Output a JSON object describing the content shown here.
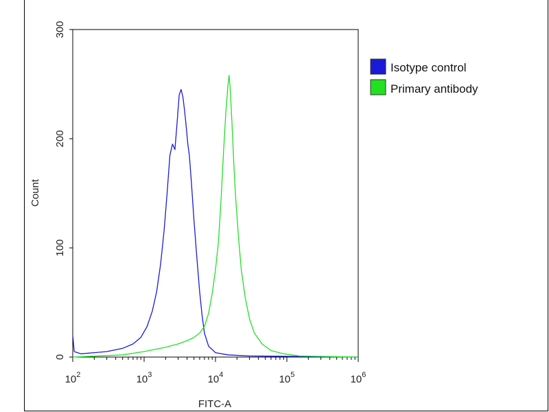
{
  "chart_data": {
    "type": "line",
    "title": "",
    "xlabel": "FITC-A",
    "ylabel": "Count",
    "x_scale": "log",
    "xlim": [
      100,
      1000000
    ],
    "ylim": [
      0,
      300
    ],
    "x_ticks": [
      {
        "value": 100,
        "base": "10",
        "exp": "2"
      },
      {
        "value": 1000,
        "base": "10",
        "exp": "3"
      },
      {
        "value": 10000,
        "base": "10",
        "exp": "4"
      },
      {
        "value": 100000,
        "base": "10",
        "exp": "5"
      },
      {
        "value": 1000000,
        "base": "10",
        "exp": "6"
      }
    ],
    "y_ticks": [
      0,
      100,
      200,
      300
    ],
    "grid": false,
    "legend_position": "top-right",
    "series": [
      {
        "name": "Isotype control",
        "color": "#1a1ad6",
        "points": [
          [
            100,
            20
          ],
          [
            105,
            5
          ],
          [
            130,
            3
          ],
          [
            200,
            4
          ],
          [
            300,
            5
          ],
          [
            500,
            8
          ],
          [
            700,
            12
          ],
          [
            900,
            18
          ],
          [
            1100,
            28
          ],
          [
            1300,
            42
          ],
          [
            1500,
            60
          ],
          [
            1700,
            85
          ],
          [
            1900,
            115
          ],
          [
            2100,
            150
          ],
          [
            2300,
            185
          ],
          [
            2500,
            195
          ],
          [
            2700,
            190
          ],
          [
            2900,
            215
          ],
          [
            3100,
            240
          ],
          [
            3300,
            245
          ],
          [
            3500,
            238
          ],
          [
            3700,
            225
          ],
          [
            3900,
            210
          ],
          [
            4100,
            195
          ],
          [
            4300,
            185
          ],
          [
            4600,
            160
          ],
          [
            5000,
            125
          ],
          [
            5500,
            90
          ],
          [
            6000,
            60
          ],
          [
            6500,
            38
          ],
          [
            7000,
            22
          ],
          [
            8000,
            10
          ],
          [
            10000,
            4
          ],
          [
            15000,
            2
          ],
          [
            30000,
            1
          ],
          [
            1000000,
            0
          ]
        ]
      },
      {
        "name": "Primary antibody",
        "color": "#22e022",
        "points": [
          [
            100,
            0
          ],
          [
            500,
            2
          ],
          [
            1000,
            5
          ],
          [
            2000,
            9
          ],
          [
            3000,
            12
          ],
          [
            4000,
            15
          ],
          [
            5000,
            18
          ],
          [
            6000,
            22
          ],
          [
            7000,
            28
          ],
          [
            8000,
            40
          ],
          [
            9000,
            58
          ],
          [
            10000,
            80
          ],
          [
            11000,
            105
          ],
          [
            12000,
            145
          ],
          [
            13000,
            190
          ],
          [
            14000,
            225
          ],
          [
            15000,
            250
          ],
          [
            15500,
            258
          ],
          [
            16000,
            248
          ],
          [
            17000,
            215
          ],
          [
            18000,
            180
          ],
          [
            19000,
            150
          ],
          [
            21000,
            110
          ],
          [
            23000,
            80
          ],
          [
            26000,
            55
          ],
          [
            30000,
            35
          ],
          [
            35000,
            22
          ],
          [
            45000,
            12
          ],
          [
            60000,
            6
          ],
          [
            90000,
            3
          ],
          [
            150000,
            1
          ],
          [
            1000000,
            0
          ]
        ]
      }
    ]
  }
}
